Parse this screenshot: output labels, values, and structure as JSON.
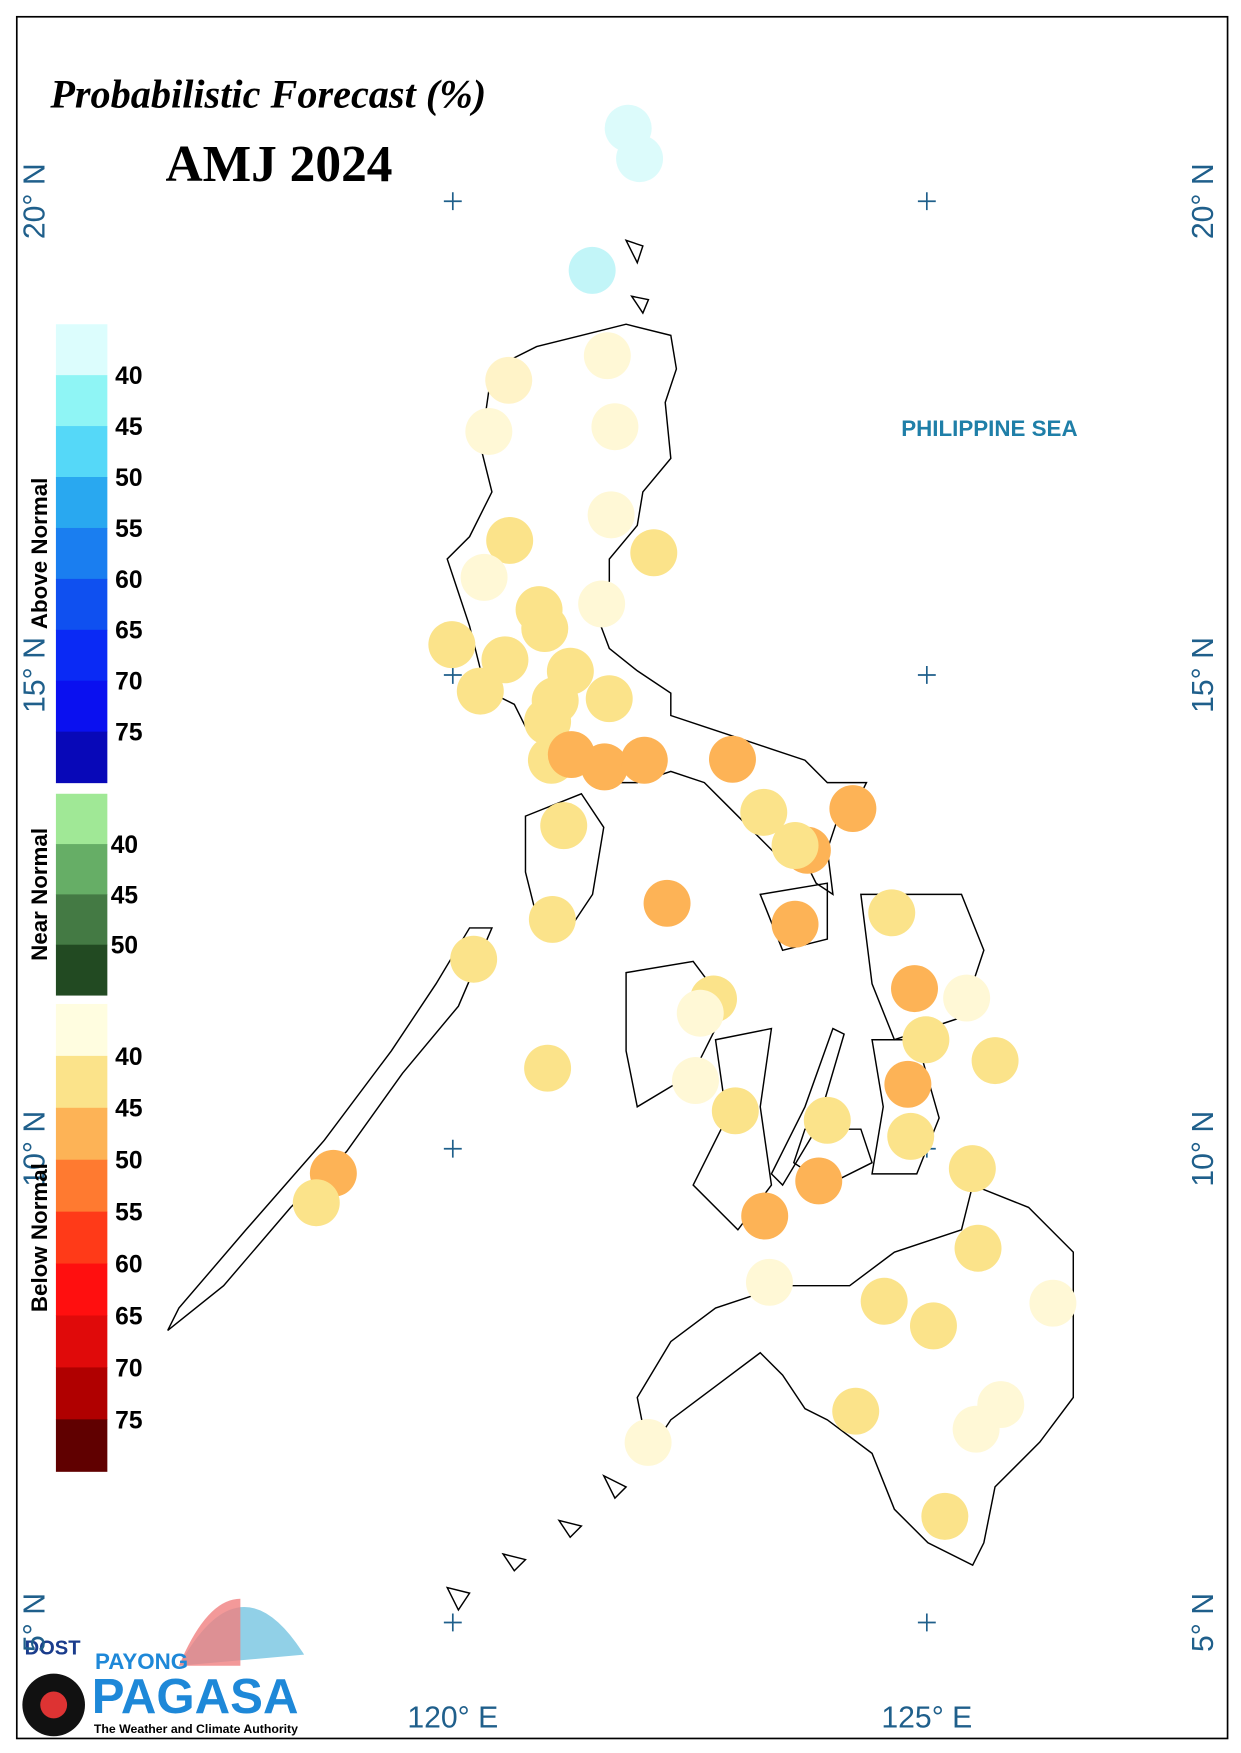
{
  "title": "Probabilistic Forecast (%)",
  "subtitle": "AMJ 2024",
  "sea_label": "PHILIPPINE SEA",
  "lon_ticks": [
    {
      "value": 120,
      "label": "120° E"
    },
    {
      "value": 125,
      "label": "125° E"
    }
  ],
  "lat_ticks": [
    {
      "value": 20,
      "label": "20° N"
    },
    {
      "value": 15,
      "label": "15° N"
    },
    {
      "value": 10,
      "label": "10° N"
    },
    {
      "value": 5,
      "label": "5° N"
    }
  ],
  "legend": [
    {
      "name": "Above Normal",
      "labels": [
        40,
        45,
        50,
        55,
        60,
        65,
        70,
        75
      ],
      "colors": [
        "#dcfdfd",
        "#8ff5f5",
        "#55d8f8",
        "#29a8f0",
        "#1a7ef0",
        "#0f50f0",
        "#0a2af5",
        "#0a10f0",
        "#0808b8"
      ]
    },
    {
      "name": "Near Normal",
      "labels": [
        40,
        45,
        50
      ],
      "colors": [
        "#a0e896",
        "#66ae66",
        "#447a44",
        "#224a22"
      ]
    },
    {
      "name": "Below Normal",
      "labels": [
        40,
        45,
        50,
        55,
        60,
        65,
        70,
        75
      ],
      "colors": [
        "#fffde0",
        "#fbe38a",
        "#fdb356",
        "#ff7a30",
        "#ff3a18",
        "#ff0f0f",
        "#e00a0a",
        "#b00000",
        "#600000"
      ]
    }
  ],
  "stations": [
    {
      "lon": 121.85,
      "lat": 20.77,
      "color": "#dcfbfb"
    },
    {
      "lon": 121.97,
      "lat": 20.45,
      "color": "#dcfbfb"
    },
    {
      "lon": 121.47,
      "lat": 19.27,
      "color": "#c2f5f8"
    },
    {
      "lon": 121.63,
      "lat": 18.37,
      "color": "#fff8d6"
    },
    {
      "lon": 120.59,
      "lat": 18.11,
      "color": "#fff3c8"
    },
    {
      "lon": 121.71,
      "lat": 17.62,
      "color": "#fff8d6"
    },
    {
      "lon": 120.38,
      "lat": 17.57,
      "color": "#fff8d6"
    },
    {
      "lon": 121.67,
      "lat": 16.69,
      "color": "#fff8d6"
    },
    {
      "lon": 120.6,
      "lat": 16.42,
      "color": "#fbe38a"
    },
    {
      "lon": 122.12,
      "lat": 16.29,
      "color": "#fbe38a"
    },
    {
      "lon": 120.33,
      "lat": 16.03,
      "color": "#fff8d6"
    },
    {
      "lon": 121.57,
      "lat": 15.75,
      "color": "#fff8d6"
    },
    {
      "lon": 120.91,
      "lat": 15.69,
      "color": "#fbe38a"
    },
    {
      "lon": 120.97,
      "lat": 15.49,
      "color": "#fbe38a"
    },
    {
      "lon": 119.99,
      "lat": 15.32,
      "color": "#fbe38a"
    },
    {
      "lon": 120.55,
      "lat": 15.16,
      "color": "#fbe38a"
    },
    {
      "lon": 121.24,
      "lat": 15.04,
      "color": "#fbe38a"
    },
    {
      "lon": 120.29,
      "lat": 14.83,
      "color": "#fbe38a"
    },
    {
      "lon": 121.65,
      "lat": 14.75,
      "color": "#fbe38a"
    },
    {
      "lon": 121.08,
      "lat": 14.73,
      "color": "#fbe38a"
    },
    {
      "lon": 121.0,
      "lat": 14.51,
      "color": "#fbe38a"
    },
    {
      "lon": 121.04,
      "lat": 14.1,
      "color": "#fbe38a"
    },
    {
      "lon": 121.25,
      "lat": 14.16,
      "color": "#fdb356"
    },
    {
      "lon": 121.6,
      "lat": 14.03,
      "color": "#fdb356"
    },
    {
      "lon": 122.02,
      "lat": 14.1,
      "color": "#fdb356"
    },
    {
      "lon": 122.95,
      "lat": 14.11,
      "color": "#fdb356"
    },
    {
      "lon": 123.28,
      "lat": 13.55,
      "color": "#fbe38a"
    },
    {
      "lon": 124.22,
      "lat": 13.59,
      "color": "#fdb356"
    },
    {
      "lon": 123.74,
      "lat": 13.15,
      "color": "#fdb356"
    },
    {
      "lon": 123.61,
      "lat": 13.2,
      "color": "#fbe38a"
    },
    {
      "lon": 121.17,
      "lat": 13.41,
      "color": "#fbe38a"
    },
    {
      "lon": 122.26,
      "lat": 12.59,
      "color": "#fdb356"
    },
    {
      "lon": 123.61,
      "lat": 12.37,
      "color": "#fdb356"
    },
    {
      "lon": 124.63,
      "lat": 12.49,
      "color": "#fbe38a"
    },
    {
      "lon": 121.05,
      "lat": 12.42,
      "color": "#fbe38a"
    },
    {
      "lon": 120.22,
      "lat": 12.0,
      "color": "#fbe38a"
    },
    {
      "lon": 124.87,
      "lat": 11.69,
      "color": "#fdb356"
    },
    {
      "lon": 125.42,
      "lat": 11.59,
      "color": "#fff8d6"
    },
    {
      "lon": 122.75,
      "lat": 11.58,
      "color": "#fbe38a"
    },
    {
      "lon": 122.61,
      "lat": 11.43,
      "color": "#fff8d6"
    },
    {
      "lon": 124.99,
      "lat": 11.15,
      "color": "#fbe38a"
    },
    {
      "lon": 125.72,
      "lat": 10.93,
      "color": "#fbe38a"
    },
    {
      "lon": 121.0,
      "lat": 10.85,
      "color": "#fbe38a"
    },
    {
      "lon": 124.8,
      "lat": 10.68,
      "color": "#fdb356"
    },
    {
      "lon": 122.56,
      "lat": 10.72,
      "color": "#fff8d6"
    },
    {
      "lon": 122.98,
      "lat": 10.4,
      "color": "#fbe38a"
    },
    {
      "lon": 123.95,
      "lat": 10.3,
      "color": "#fbe38a"
    },
    {
      "lon": 124.83,
      "lat": 10.13,
      "color": "#fbe38a"
    },
    {
      "lon": 118.74,
      "lat": 9.74,
      "color": "#fdb356"
    },
    {
      "lon": 118.56,
      "lat": 9.43,
      "color": "#fbe38a"
    },
    {
      "lon": 123.86,
      "lat": 9.66,
      "color": "#fdb356"
    },
    {
      "lon": 125.48,
      "lat": 9.79,
      "color": "#fbe38a"
    },
    {
      "lon": 123.29,
      "lat": 9.29,
      "color": "#fdb356"
    },
    {
      "lon": 125.54,
      "lat": 8.95,
      "color": "#fbe38a"
    },
    {
      "lon": 123.34,
      "lat": 8.59,
      "color": "#fff8d6"
    },
    {
      "lon": 124.55,
      "lat": 8.39,
      "color": "#fbe38a"
    },
    {
      "lon": 126.33,
      "lat": 8.37,
      "color": "#fff8d6"
    },
    {
      "lon": 125.07,
      "lat": 8.13,
      "color": "#fbe38a"
    },
    {
      "lon": 124.25,
      "lat": 7.23,
      "color": "#fbe38a"
    },
    {
      "lon": 125.78,
      "lat": 7.3,
      "color": "#fff8d6"
    },
    {
      "lon": 125.52,
      "lat": 7.04,
      "color": "#fff8d6"
    },
    {
      "lon": 122.06,
      "lat": 6.9,
      "color": "#fff8d6"
    },
    {
      "lon": 125.19,
      "lat": 6.12,
      "color": "#fbe38a"
    }
  ],
  "logo": {
    "agency": "DOST",
    "brand_top": "PAYONG",
    "brand": "PAGASA",
    "tagline": "The Weather and Climate Authority"
  }
}
